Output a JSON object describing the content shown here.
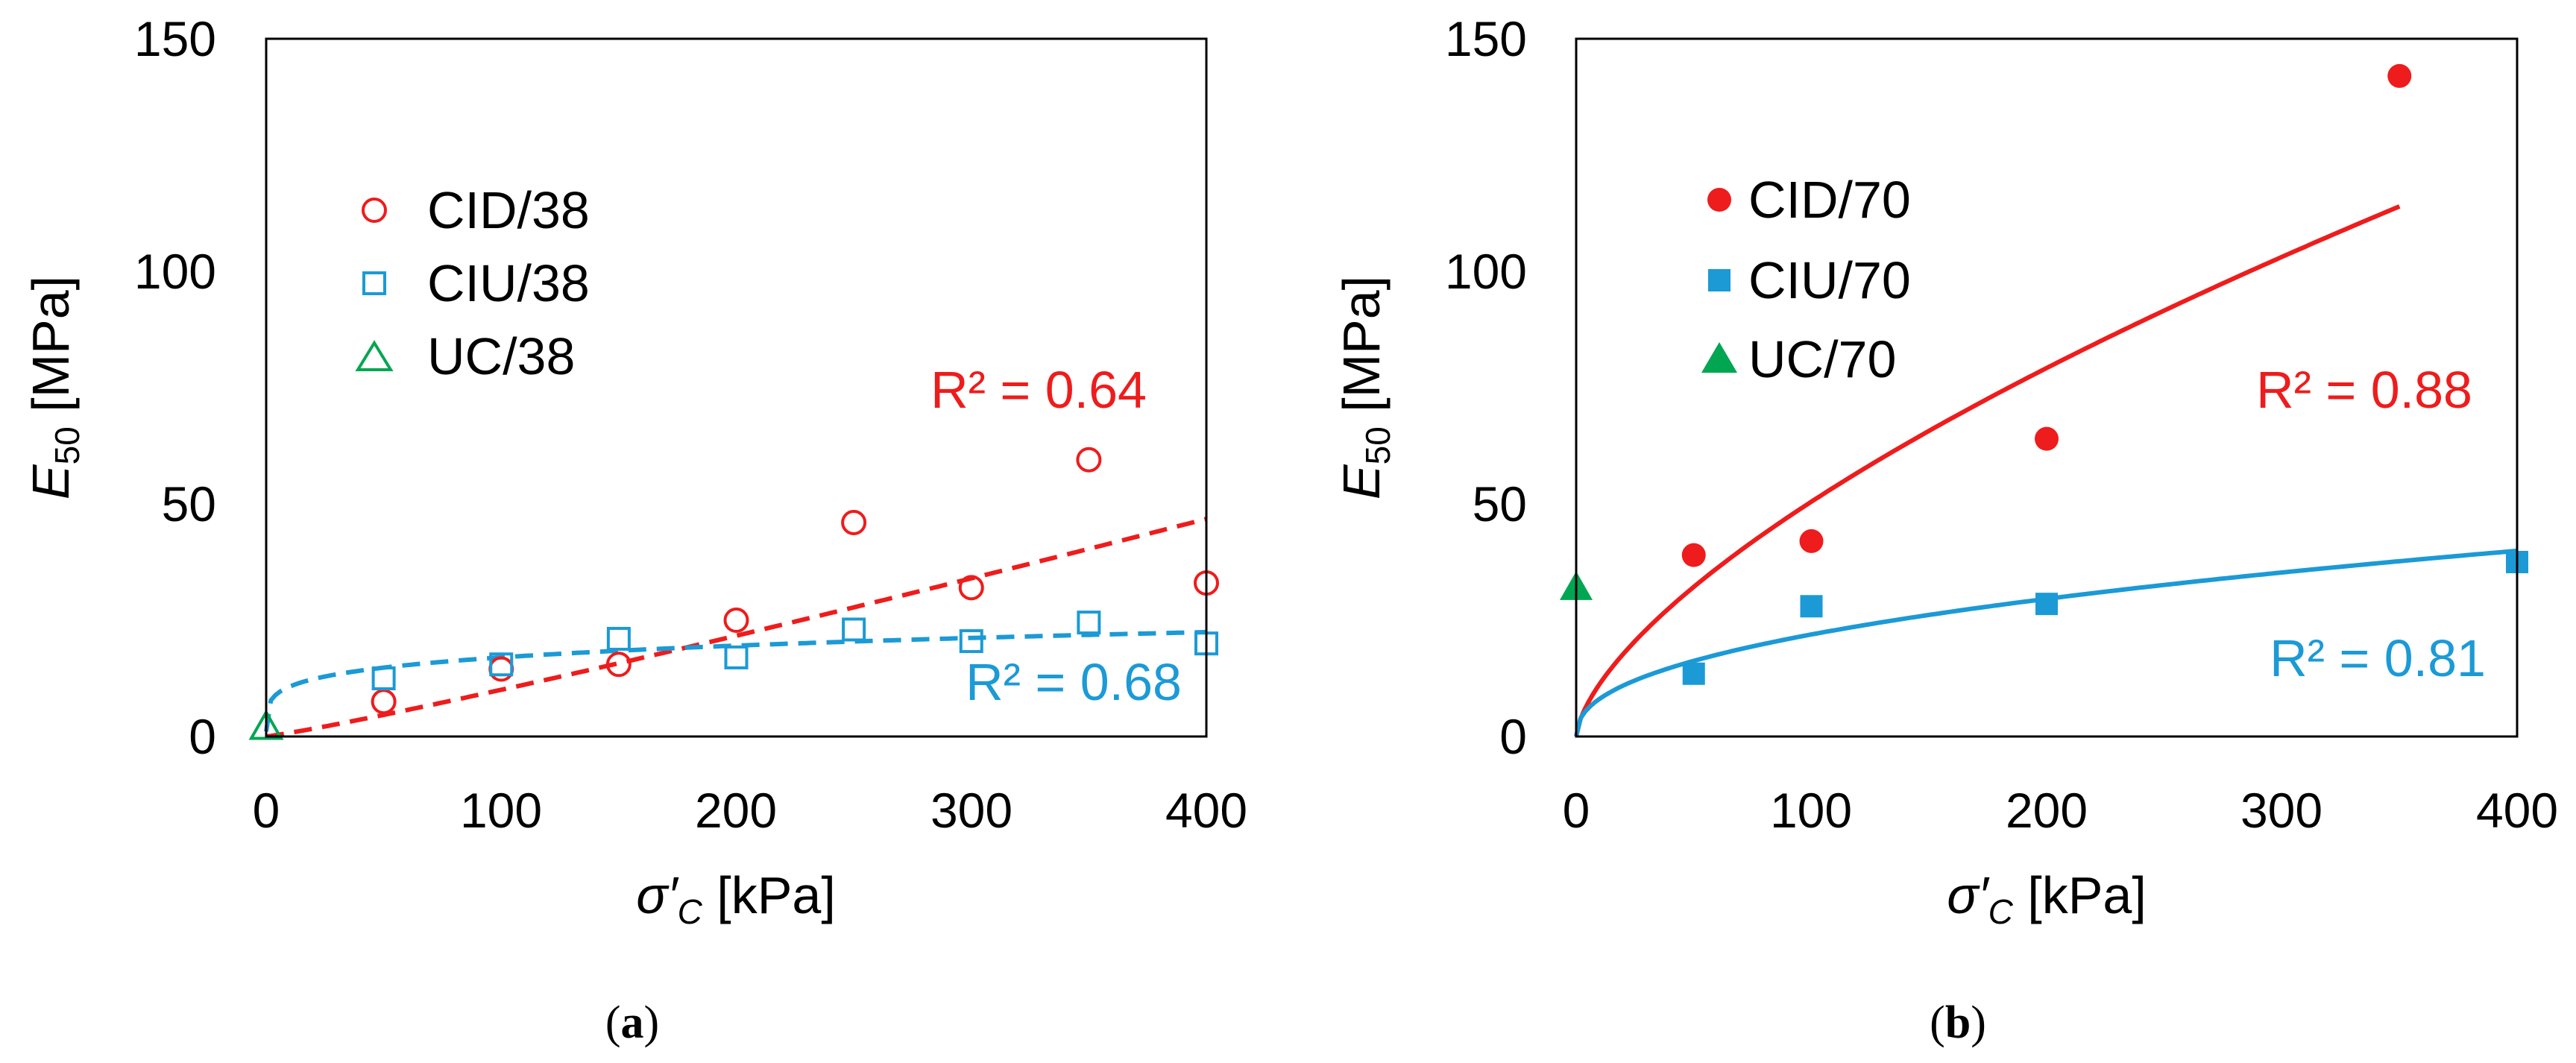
{
  "colors": {
    "red": "#ee1c1c",
    "blue": "#1b9ad6",
    "green": "#00a651",
    "axis": "#000000"
  },
  "chart_data": [
    {
      "panel": "a",
      "caption_letter": "a",
      "type": "scatter",
      "xlabel": {
        "sym": "σ′",
        "sub": "C",
        "unit": "[kPa]"
      },
      "ylabel": {
        "sym": "E",
        "sub": "50",
        "unit": "[MPa]"
      },
      "xlim": [
        0,
        400
      ],
      "ylim": [
        0,
        150
      ],
      "xticks": [
        "0",
        "100",
        "200",
        "300",
        "400"
      ],
      "yticks": [
        "0",
        "50",
        "100",
        "150"
      ],
      "marker_fill": "open",
      "series": [
        {
          "name": "CID/38",
          "color": "#ee1c1c",
          "marker": "circle",
          "x": [
            50,
            100,
            150,
            200,
            250,
            300,
            350,
            400
          ],
          "y": [
            7.5,
            14.5,
            15.5,
            25,
            46,
            32,
            59.5,
            33
          ]
        },
        {
          "name": "CIU/38",
          "color": "#1b9ad6",
          "marker": "square",
          "x": [
            50,
            100,
            150,
            200,
            250,
            300,
            350,
            400
          ],
          "y": [
            12.5,
            15.5,
            21,
            17,
            23,
            20.5,
            24.5,
            20
          ]
        },
        {
          "name": "UC/38",
          "color": "#00a651",
          "marker": "triangle",
          "x": [
            0
          ],
          "y": [
            2
          ]
        }
      ],
      "fits": [
        {
          "series": "CID/38",
          "color": "#ee1c1c",
          "style": "dashed",
          "form": "power",
          "a": 0.0605,
          "b": 1.11,
          "x0": 0,
          "x1": 400,
          "r2": "R² = 0.64"
        },
        {
          "series": "CIU/38",
          "color": "#1b9ad6",
          "style": "dashed",
          "form": "power",
          "a": 6.77,
          "b": 0.2,
          "x0": 0,
          "x1": 400,
          "r2": "R² = 0.68"
        }
      ]
    },
    {
      "panel": "b",
      "caption_letter": "b",
      "type": "scatter",
      "xlabel": {
        "sym": "σ′",
        "sub": "C",
        "unit": "[kPa]"
      },
      "ylabel": {
        "sym": "E",
        "sub": "50",
        "unit": "[MPa]"
      },
      "xlim": [
        0,
        400
      ],
      "ylim": [
        0,
        150
      ],
      "xticks": [
        "0",
        "100",
        "200",
        "300",
        "400"
      ],
      "yticks": [
        "0",
        "50",
        "100",
        "150"
      ],
      "marker_fill": "filled",
      "series": [
        {
          "name": "CID/70",
          "color": "#ee1c1c",
          "marker": "circle",
          "x": [
            50,
            100,
            200,
            350
          ],
          "y": [
            39,
            42,
            64,
            142
          ]
        },
        {
          "name": "CIU/70",
          "color": "#1b9ad6",
          "marker": "square",
          "x": [
            50,
            100,
            200,
            400
          ],
          "y": [
            13.5,
            28,
            28.5,
            37.5
          ]
        },
        {
          "name": "UC/70",
          "color": "#00a651",
          "marker": "triangle",
          "x": [
            0
          ],
          "y": [
            32
          ]
        }
      ],
      "fits": [
        {
          "series": "CID/70",
          "color": "#ee1c1c",
          "style": "solid",
          "form": "power",
          "a": 2.53,
          "b": 0.65,
          "x0": 0,
          "x1": 350,
          "r2": "R² = 0.88"
        },
        {
          "series": "CIU/70",
          "color": "#1b9ad6",
          "style": "solid",
          "form": "power",
          "a": 3.0,
          "b": 0.432,
          "x0": 0,
          "x1": 400,
          "r2": "R² = 0.81"
        }
      ]
    }
  ]
}
